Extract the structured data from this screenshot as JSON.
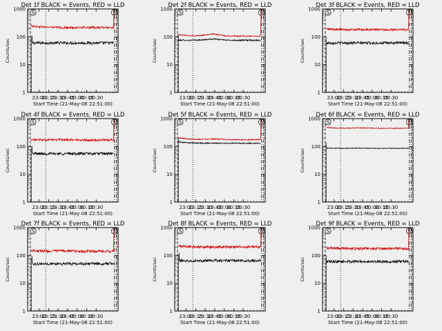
{
  "chart_data": [
    {
      "type": "line",
      "title": "Det 1f BLACK = Events, RED = LLD",
      "xlabel": "Start Time (21-May-08 22:51:00)",
      "ylabel": "Counts/sec",
      "yscale": "log",
      "ylim": [
        1,
        1000
      ],
      "xlim": [
        0,
        100
      ],
      "xticks": [
        "23:00",
        "23:15",
        "23:30",
        "23:45",
        "00:00",
        "00:15",
        "00:30"
      ],
      "yticks": [
        "1",
        "10",
        "100",
        "1000"
      ],
      "markers": [
        "S",
        "S"
      ],
      "series": [
        {
          "color": "#000000",
          "level": 60,
          "trend": [
            0,
            0,
            0,
            0
          ],
          "noise": 0.05,
          "start_spike": true
        },
        {
          "color": "#d00000",
          "level": 215,
          "trend": [
            0.15,
            -0.02,
            0,
            0
          ],
          "noise": 0.04
        }
      ]
    },
    {
      "type": "line",
      "title": "Det 2f BLACK = Events, RED = LLD",
      "xlabel": "Start Time (21-May-08 22:51:00)",
      "ylabel": "Counts/sec",
      "yscale": "log",
      "ylim": [
        1,
        1000
      ],
      "xlim": [
        0,
        100
      ],
      "xticks": [
        "23:00",
        "23:15",
        "23:30",
        "23:45",
        "00:00",
        "00:15",
        "00:30"
      ],
      "yticks": [
        "1",
        "10",
        "100",
        "1000"
      ],
      "markers": [
        "S",
        "S"
      ],
      "series": [
        {
          "color": "#000000",
          "level": 75,
          "trend": [
            0,
            0.1,
            0,
            0
          ],
          "noise": 0.025,
          "start_spike": false
        },
        {
          "color": "#d00000",
          "level": 105,
          "trend": [
            0.15,
            0.18,
            0,
            0
          ],
          "noise": 0.02
        }
      ]
    },
    {
      "type": "line",
      "title": "Det 3f BLACK = Events, RED = LLD",
      "xlabel": "Start Time (21-May-08 22:51:00)",
      "ylabel": "Counts/sec",
      "yscale": "log",
      "ylim": [
        1,
        1000
      ],
      "xlim": [
        0,
        100
      ],
      "xticks": [
        "23:00",
        "23:15",
        "23:30",
        "23:45",
        "00:00",
        "00:15",
        "00:30"
      ],
      "yticks": [
        "1",
        "10",
        "100",
        "1000"
      ],
      "markers": [
        "S",
        "S"
      ],
      "series": [
        {
          "color": "#000000",
          "level": 60,
          "trend": [
            0,
            0,
            0,
            0
          ],
          "noise": 0.05,
          "start_spike": false
        },
        {
          "color": "#d00000",
          "level": 180,
          "trend": [
            0.05,
            0,
            0,
            0
          ],
          "noise": 0.04
        }
      ]
    },
    {
      "type": "line",
      "title": "Det 4f BLACK = Events, RED = LLD",
      "xlabel": "Start Time (21-May-08 22:51:00)",
      "ylabel": "Counts/sec",
      "yscale": "log",
      "ylim": [
        1,
        1000
      ],
      "xlim": [
        0,
        100
      ],
      "xticks": [
        "23:00",
        "23:15",
        "23:30",
        "23:45",
        "00:00",
        "00:15",
        "00:30"
      ],
      "yticks": [
        "1",
        "10",
        "100",
        "1000"
      ],
      "markers": [
        "S",
        "S"
      ],
      "series": [
        {
          "color": "#000000",
          "level": 55,
          "trend": [
            0,
            0,
            0,
            0
          ],
          "noise": 0.05,
          "start_spike": true
        },
        {
          "color": "#d00000",
          "level": 170,
          "trend": [
            0.05,
            0.03,
            0,
            0
          ],
          "noise": 0.04
        }
      ]
    },
    {
      "type": "line",
      "title": "Det 5f BLACK = Events, RED = LLD",
      "xlabel": "Start Time (21-May-08 22:51:00)",
      "ylabel": "Counts/sec",
      "yscale": "log",
      "ylim": [
        1,
        1000
      ],
      "xlim": [
        0,
        100
      ],
      "xticks": [
        "23:00",
        "23:15",
        "23:30",
        "23:45",
        "00:00",
        "00:15",
        "00:30"
      ],
      "yticks": [
        "1",
        "10",
        "100",
        "1000"
      ],
      "markers": [
        "S",
        "S"
      ],
      "series": [
        {
          "color": "#000000",
          "level": 130,
          "trend": [
            0.12,
            0,
            0,
            0
          ],
          "noise": 0.02,
          "start_spike": false
        },
        {
          "color": "#d00000",
          "level": 175,
          "trend": [
            0.18,
            0.06,
            0,
            0
          ],
          "noise": 0.02
        }
      ]
    },
    {
      "type": "line",
      "title": "Det 6f BLACK = Events, RED = LLD",
      "xlabel": "Start Time (21-May-08 22:51:00)",
      "ylabel": "Counts/sec",
      "yscale": "log",
      "ylim": [
        1,
        1000
      ],
      "xlim": [
        0,
        100
      ],
      "xticks": [
        "23:00",
        "23:15",
        "23:30",
        "23:45",
        "00:00",
        "00:15",
        "00:30"
      ],
      "yticks": [
        "1",
        "10",
        "100",
        "1000"
      ],
      "markers": [
        "S",
        "S"
      ],
      "series": [
        {
          "color": "#000000",
          "level": 85,
          "trend": [
            0.03,
            0.02,
            0,
            0
          ],
          "noise": 0.015,
          "start_spike": false
        },
        {
          "color": "#d00000",
          "level": 450,
          "trend": [
            0.06,
            0.03,
            0,
            0
          ],
          "noise": 0.015
        }
      ]
    },
    {
      "type": "line",
      "title": "Det 7f BLACK = Events, RED = LLD",
      "xlabel": "Start Time (21-May-08 22:51:00)",
      "ylabel": "Counts/sec",
      "yscale": "log",
      "ylim": [
        1,
        1000
      ],
      "xlim": [
        0,
        100
      ],
      "xticks": [
        "23:00",
        "23:15",
        "23:30",
        "23:45",
        "00:00",
        "00:15",
        "00:30"
      ],
      "yticks": [
        "1",
        "10",
        "100",
        "1000"
      ],
      "markers": [
        "S",
        "S"
      ],
      "series": [
        {
          "color": "#000000",
          "level": 50,
          "trend": [
            0,
            0,
            0,
            0
          ],
          "noise": 0.05,
          "start_spike": true
        },
        {
          "color": "#d00000",
          "level": 140,
          "trend": [
            0.1,
            0.04,
            0,
            0
          ],
          "noise": 0.045
        }
      ]
    },
    {
      "type": "line",
      "title": "Det 8f BLACK = Events, RED = LLD",
      "xlabel": "Start Time (21-May-08 22:51:00)",
      "ylabel": "Counts/sec",
      "yscale": "log",
      "ylim": [
        1,
        1000
      ],
      "xlim": [
        0,
        100
      ],
      "xticks": [
        "23:00",
        "23:15",
        "23:30",
        "23:45",
        "00:00",
        "00:15",
        "00:30"
      ],
      "yticks": [
        "1",
        "10",
        "100",
        "1000"
      ],
      "markers": [
        "S",
        "S"
      ],
      "series": [
        {
          "color": "#000000",
          "level": 65,
          "trend": [
            0,
            0,
            0,
            0
          ],
          "noise": 0.05,
          "start_spike": true
        },
        {
          "color": "#d00000",
          "level": 200,
          "trend": [
            0.1,
            0,
            0,
            0
          ],
          "noise": 0.045
        }
      ]
    },
    {
      "type": "line",
      "title": "Det 9f BLACK = Events, RED = LLD",
      "xlabel": "Start Time (21-May-08 22:51:00)",
      "ylabel": "Counts/sec",
      "yscale": "log",
      "ylim": [
        1,
        1000
      ],
      "xlim": [
        0,
        100
      ],
      "xticks": [
        "23:00",
        "23:15",
        "23:30",
        "23:45",
        "00:00",
        "00:15",
        "00:30"
      ],
      "yticks": [
        "1",
        "10",
        "100",
        "1000"
      ],
      "markers": [
        "S",
        "S"
      ],
      "series": [
        {
          "color": "#000000",
          "level": 60,
          "trend": [
            0,
            0,
            0,
            0
          ],
          "noise": 0.05,
          "start_spike": false
        },
        {
          "color": "#d00000",
          "level": 175,
          "trend": [
            0.05,
            0,
            0,
            0
          ],
          "noise": 0.045
        }
      ]
    }
  ]
}
